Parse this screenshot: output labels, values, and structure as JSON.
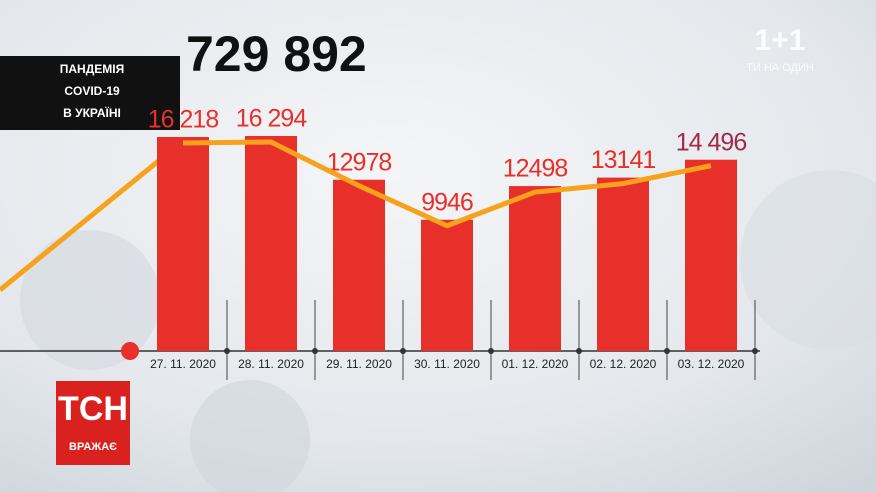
{
  "chart_data": {
    "type": "bar",
    "title": "729 892",
    "subtitle": [
      "ПАНДЕМІЯ",
      "COVID-19",
      "В УКРАЇНІ"
    ],
    "categories": [
      "27. 11. 2020",
      "28. 11. 2020",
      "29. 11. 2020",
      "30. 11. 2020",
      "01. 12. 2020",
      "02. 12. 2020",
      "03. 12. 2020"
    ],
    "values": [
      16218,
      16294,
      12978,
      9946,
      12498,
      13141,
      14496
    ],
    "value_labels": [
      "16 218",
      "16 294",
      "12978",
      "9946",
      "12498",
      "13141",
      "14 496"
    ],
    "color": "#e8302a",
    "label_colors": [
      "#e8302a",
      "#e8302a",
      "#e8302a",
      "#e8302a",
      "#e8302a",
      "#e8302a",
      "#a3284c"
    ],
    "trend_line": true,
    "line_color": "#f6a21c",
    "ylim": [
      0,
      26600
    ]
  },
  "logos": {
    "channel": "1+1",
    "channel_slogan": "ТИ НА ОДИН",
    "program": "ТСН",
    "program_tagline": "ВРАЖАЄ"
  }
}
